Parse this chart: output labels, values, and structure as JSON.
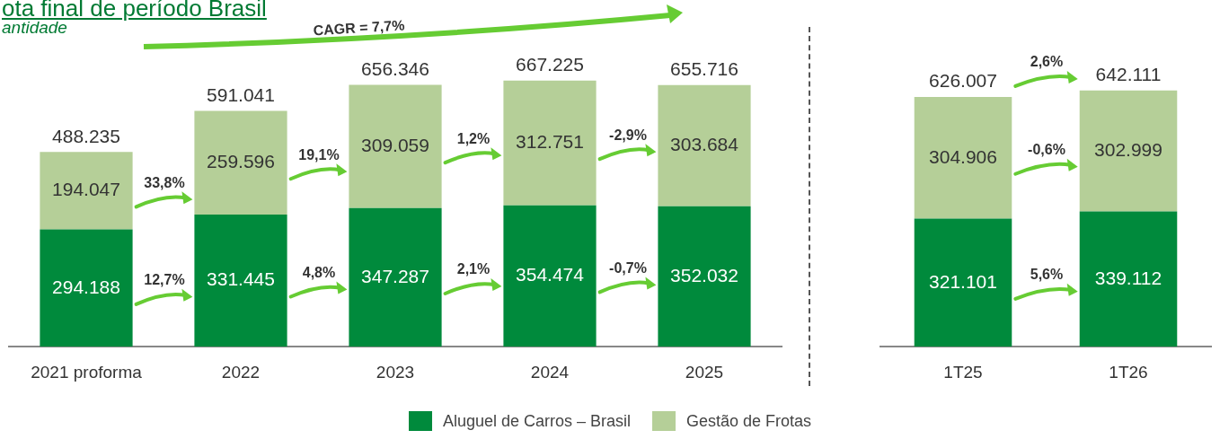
{
  "chart_data": [
    {
      "type": "bar",
      "title": "ota final de período Brasil",
      "subtitle": "antidade",
      "stacked": true,
      "legend": "bottom",
      "categories": [
        "2021 proforma",
        "2022",
        "2023",
        "2024",
        "2025"
      ],
      "series": [
        {
          "name": "Aluguel de Carros – Brasil",
          "color": "#008a3c",
          "values": [
            294188,
            331445,
            347287,
            354474,
            352032
          ],
          "value_labels": [
            "294.188",
            "331.445",
            "347.287",
            "354.474",
            "352.032"
          ]
        },
        {
          "name": "Gestão de Frotas",
          "color": "#b5cf98",
          "values": [
            194047,
            259596,
            309059,
            312751,
            303684
          ],
          "value_labels": [
            "194.047",
            "259.596",
            "309.059",
            "312.751",
            "303.684"
          ]
        }
      ],
      "totals": [
        "488.235",
        "591.041",
        "656.346",
        "667.225",
        "655.716"
      ],
      "annotations": [
        "CAGR = 7,7%",
        "33,8%",
        "12,7%",
        "19,1%",
        "4,8%",
        "1,2%",
        "2,1%",
        "-2,9%",
        "-0,7%"
      ]
    },
    {
      "type": "bar",
      "stacked": true,
      "categories": [
        "1T25",
        "1T26"
      ],
      "series": [
        {
          "color": "#008a3c",
          "values": [
            321101,
            339112
          ],
          "value_labels": [
            "321.101",
            "339.112"
          ]
        },
        {
          "color": "#b5cf98",
          "values": [
            304906,
            302999
          ],
          "value_labels": [
            "304.906",
            "302.999"
          ]
        }
      ],
      "totals": [
        "626.007",
        "642.111"
      ],
      "annotations": [
        "2,6%",
        "-0,6%",
        "5,6%"
      ]
    }
  ]
}
